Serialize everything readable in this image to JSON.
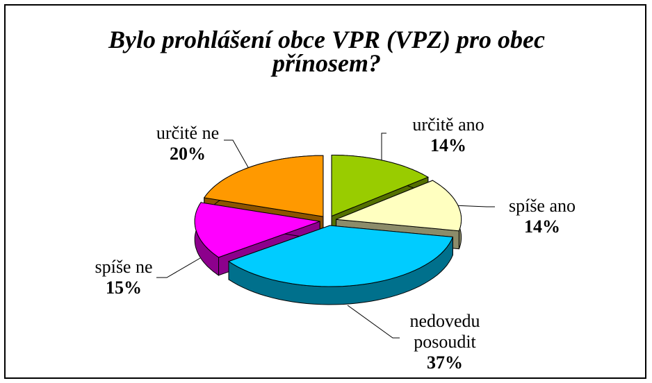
{
  "chart_data": {
    "type": "pie3d",
    "title": "Bylo prohlášení obce VPR (VPZ) pro obec přínosem?",
    "categories": [
      "určitě ano",
      "spíše ano",
      "nedovedu posoudit",
      "spíše ne",
      "určitě ne"
    ],
    "values": [
      14,
      14,
      37,
      15,
      20
    ],
    "value_labels": [
      "14%",
      "14%",
      "37%",
      "15%",
      "20%"
    ],
    "colors": [
      "#99cc00",
      "#ffffc0",
      "#00ccff",
      "#ff00ff",
      "#ff9900"
    ]
  }
}
